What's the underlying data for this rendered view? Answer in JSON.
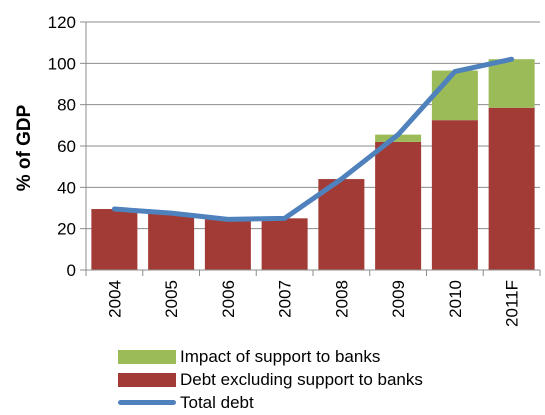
{
  "chart_data": {
    "type": "bar",
    "stacked": true,
    "categories": [
      "2004",
      "2005",
      "2006",
      "2007",
      "2008",
      "2009",
      "2010",
      "2011F"
    ],
    "series": [
      {
        "name": "Debt excluding support to banks",
        "kind": "bar",
        "color": "#a23b35",
        "values": [
          29.5,
          27.5,
          24.5,
          25,
          44,
          62,
          72.5,
          78.5
        ]
      },
      {
        "name": "Impact of support to banks",
        "kind": "bar",
        "color": "#9bbb59",
        "values": [
          0,
          0,
          0,
          0,
          0,
          3.5,
          24,
          23.5
        ]
      },
      {
        "name": "Total debt",
        "kind": "line",
        "color": "#4f81bd",
        "values": [
          29.5,
          27.5,
          24.5,
          25,
          44,
          65.5,
          96,
          102
        ]
      }
    ],
    "ylabel": "% of GDP",
    "ylim": [
      0,
      120
    ],
    "yticks": [
      0,
      20,
      40,
      60,
      80,
      100,
      120
    ],
    "grid": true,
    "legend_position": "bottom"
  },
  "legend": [
    {
      "label": "Impact of support to banks",
      "color": "#9bbb59",
      "shape": "box"
    },
    {
      "label": "Debt excluding support to banks",
      "color": "#a23b35",
      "shape": "box"
    },
    {
      "label": "Total debt",
      "color": "#4f81bd",
      "shape": "line"
    }
  ]
}
